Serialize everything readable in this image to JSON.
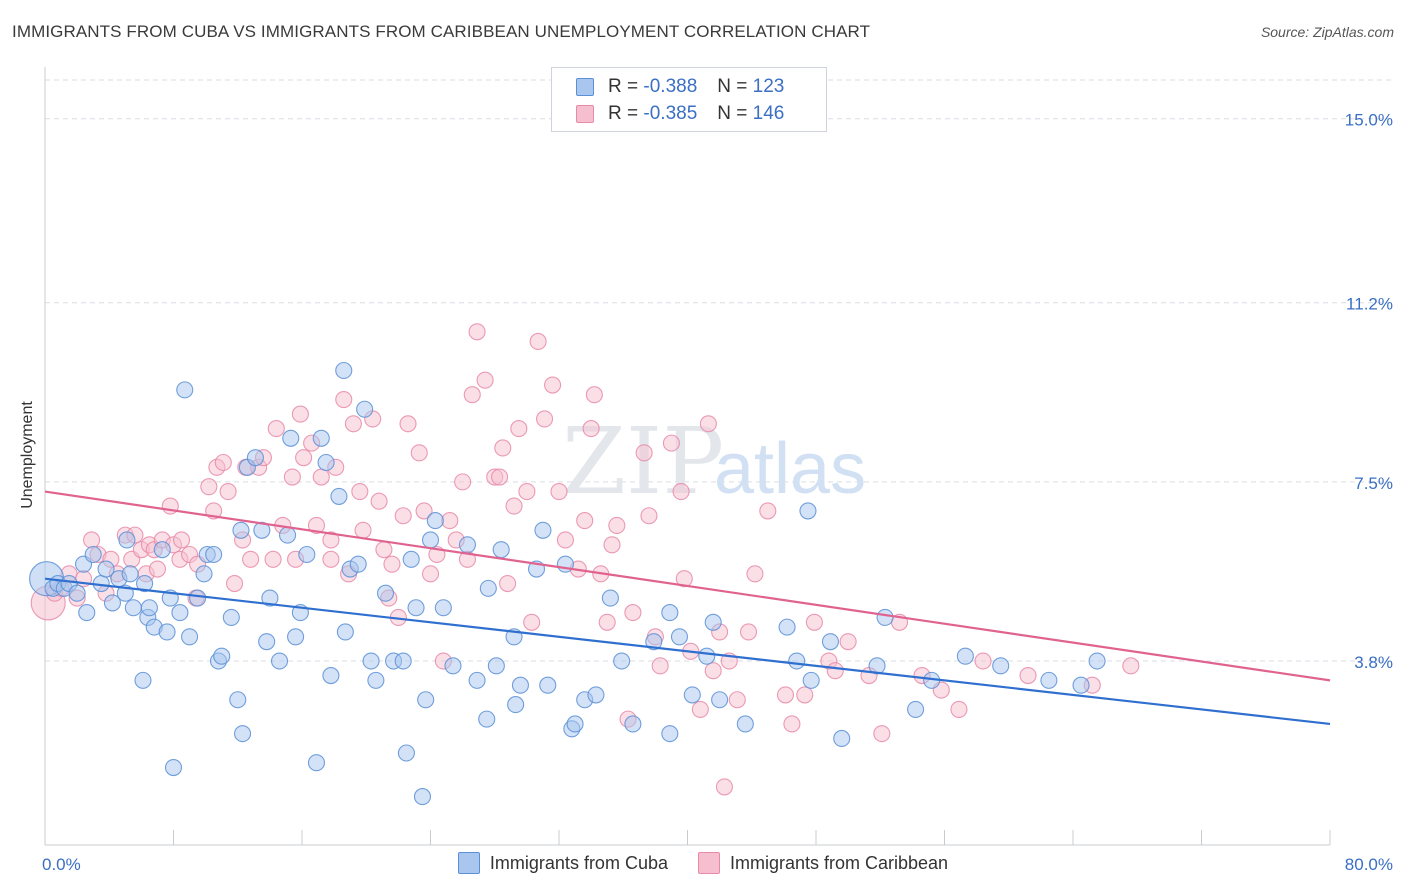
{
  "title": "IMMIGRANTS FROM CUBA VS IMMIGRANTS FROM CARIBBEAN UNEMPLOYMENT CORRELATION CHART",
  "source": "Source: ZipAtlas.com",
  "watermark": {
    "zip": "ZIP",
    "atlas": "atlas"
  },
  "legend": {
    "r_label": "R =",
    "n_label": "N =",
    "cuba": {
      "r": "-0.388",
      "n": "123"
    },
    "caribbean": {
      "r": "-0.385",
      "n": "146"
    }
  },
  "colors": {
    "cuba_fill": "#a8c6ee",
    "cuba_stroke": "#5b8fd6",
    "cuba_line": "#2f6fcf",
    "carib_fill": "#f6bfd0",
    "carib_stroke": "#e889a8",
    "carib_line": "#e0638f",
    "tick_text": "#3a6fc4",
    "grid": "#d9dde3"
  },
  "chart_data": {
    "type": "scatter",
    "title": "IMMIGRANTS FROM CUBA VS IMMIGRANTS FROM CARIBBEAN UNEMPLOYMENT CORRELATION CHART",
    "xlabel": "",
    "ylabel": "Unemployment",
    "xlim": [
      0,
      80
    ],
    "ylim": [
      0,
      15.8
    ],
    "x_tick_labels": [
      "0.0%",
      "80.0%"
    ],
    "y_ticks": [
      3.8,
      7.5,
      11.2,
      15.0
    ],
    "y_tick_labels": [
      "3.8%",
      "7.5%",
      "11.2%",
      "15.0%"
    ],
    "grid": true,
    "legend_position": "top-center",
    "series": [
      {
        "name": "Immigrants from Cuba",
        "trend": {
          "x": [
            0,
            80
          ],
          "y": [
            5.5,
            2.5
          ]
        },
        "points": [
          [
            0.1,
            5.5
          ],
          [
            0.5,
            5.3
          ],
          [
            0.8,
            5.4
          ],
          [
            1.2,
            5.3
          ],
          [
            1.5,
            5.4
          ],
          [
            2,
            5.2
          ],
          [
            2.4,
            5.8
          ],
          [
            2.6,
            4.8
          ],
          [
            3,
            6.0
          ],
          [
            3.5,
            5.4
          ],
          [
            3.8,
            5.7
          ],
          [
            4.2,
            5.0
          ],
          [
            4.6,
            5.5
          ],
          [
            5,
            5.2
          ],
          [
            5.1,
            6.3
          ],
          [
            5.3,
            5.6
          ],
          [
            5.5,
            4.9
          ],
          [
            6.1,
            3.4
          ],
          [
            6.2,
            5.4
          ],
          [
            6.4,
            4.7
          ],
          [
            6.5,
            4.9
          ],
          [
            6.8,
            4.5
          ],
          [
            7.3,
            6.1
          ],
          [
            7.6,
            4.4
          ],
          [
            7.8,
            5.1
          ],
          [
            8.0,
            1.6
          ],
          [
            8.4,
            4.8
          ],
          [
            8.7,
            9.4
          ],
          [
            9.0,
            4.3
          ],
          [
            9.5,
            5.1
          ],
          [
            9.9,
            5.6
          ],
          [
            10.1,
            6.0
          ],
          [
            10.5,
            6.0
          ],
          [
            10.8,
            3.8
          ],
          [
            11.0,
            3.9
          ],
          [
            11.6,
            4.7
          ],
          [
            12.0,
            3.0
          ],
          [
            12.2,
            6.5
          ],
          [
            12.3,
            2.3
          ],
          [
            12.6,
            7.8
          ],
          [
            13.1,
            8.0
          ],
          [
            13.5,
            6.5
          ],
          [
            13.8,
            4.2
          ],
          [
            14.0,
            5.1
          ],
          [
            14.6,
            3.8
          ],
          [
            15.1,
            6.4
          ],
          [
            15.3,
            8.4
          ],
          [
            15.6,
            4.3
          ],
          [
            15.9,
            4.8
          ],
          [
            16.3,
            6.0
          ],
          [
            16.9,
            1.7
          ],
          [
            17.2,
            8.4
          ],
          [
            17.5,
            7.9
          ],
          [
            17.8,
            3.5
          ],
          [
            18.3,
            7.2
          ],
          [
            18.6,
            9.8
          ],
          [
            18.7,
            4.4
          ],
          [
            19.0,
            5.7
          ],
          [
            19.5,
            5.8
          ],
          [
            19.9,
            9.0
          ],
          [
            20.3,
            3.8
          ],
          [
            20.6,
            3.4
          ],
          [
            21.2,
            5.2
          ],
          [
            21.7,
            3.8
          ],
          [
            22.3,
            3.8
          ],
          [
            22.5,
            1.9
          ],
          [
            22.8,
            5.9
          ],
          [
            23.1,
            4.9
          ],
          [
            23.5,
            1.0
          ],
          [
            23.7,
            3.0
          ],
          [
            24.0,
            6.3
          ],
          [
            24.3,
            6.7
          ],
          [
            24.8,
            4.9
          ],
          [
            25.4,
            3.7
          ],
          [
            26.3,
            6.2
          ],
          [
            26.9,
            3.4
          ],
          [
            27.5,
            2.6
          ],
          [
            27.6,
            5.3
          ],
          [
            28.1,
            3.7
          ],
          [
            28.4,
            6.1
          ],
          [
            29.2,
            4.3
          ],
          [
            29.3,
            2.9
          ],
          [
            29.6,
            3.3
          ],
          [
            30.6,
            5.7
          ],
          [
            31.0,
            6.5
          ],
          [
            31.3,
            3.3
          ],
          [
            32.4,
            5.8
          ],
          [
            32.8,
            2.4
          ],
          [
            33.0,
            2.5
          ],
          [
            33.6,
            3.0
          ],
          [
            34.3,
            3.1
          ],
          [
            35.2,
            5.1
          ],
          [
            35.9,
            3.8
          ],
          [
            36.6,
            2.5
          ],
          [
            37.9,
            4.2
          ],
          [
            38.9,
            2.3
          ],
          [
            38.9,
            4.8
          ],
          [
            39.5,
            4.3
          ],
          [
            40.3,
            3.1
          ],
          [
            41.2,
            3.9
          ],
          [
            41.6,
            4.6
          ],
          [
            42.0,
            3.0
          ],
          [
            43.6,
            2.5
          ],
          [
            46.2,
            4.5
          ],
          [
            46.8,
            3.8
          ],
          [
            47.5,
            6.9
          ],
          [
            47.7,
            3.4
          ],
          [
            48.9,
            4.2
          ],
          [
            49.6,
            2.2
          ],
          [
            51.8,
            3.7
          ],
          [
            52.3,
            4.7
          ],
          [
            54.2,
            2.8
          ],
          [
            55.2,
            3.4
          ],
          [
            57.3,
            3.9
          ],
          [
            59.5,
            3.7
          ],
          [
            62.5,
            3.4
          ],
          [
            64.5,
            3.3
          ],
          [
            65.5,
            3.8
          ]
        ]
      },
      {
        "name": "Immigrants from Caribbean",
        "trend": {
          "x": [
            0,
            80
          ],
          "y": [
            7.3,
            3.4
          ]
        },
        "points": [
          [
            0.2,
            5.0
          ],
          [
            0.6,
            5.2
          ],
          [
            1.0,
            5.3
          ],
          [
            1.5,
            5.6
          ],
          [
            2,
            5.1
          ],
          [
            2.4,
            5.5
          ],
          [
            2.9,
            6.3
          ],
          [
            3.3,
            6.0
          ],
          [
            3.8,
            5.2
          ],
          [
            4.1,
            5.9
          ],
          [
            4.5,
            5.6
          ],
          [
            5.0,
            6.4
          ],
          [
            5.4,
            5.9
          ],
          [
            5.6,
            6.4
          ],
          [
            6.0,
            6.1
          ],
          [
            6.3,
            5.6
          ],
          [
            6.5,
            6.2
          ],
          [
            6.8,
            6.1
          ],
          [
            7.0,
            5.7
          ],
          [
            7.3,
            6.3
          ],
          [
            7.8,
            7.0
          ],
          [
            8.0,
            6.2
          ],
          [
            8.4,
            5.9
          ],
          [
            8.5,
            6.3
          ],
          [
            9.0,
            6.0
          ],
          [
            9.4,
            5.1
          ],
          [
            9.5,
            5.8
          ],
          [
            10.2,
            7.4
          ],
          [
            10.5,
            6.9
          ],
          [
            10.7,
            7.8
          ],
          [
            11.1,
            7.9
          ],
          [
            11.4,
            7.3
          ],
          [
            11.8,
            5.4
          ],
          [
            12.3,
            6.3
          ],
          [
            12.5,
            7.8
          ],
          [
            12.8,
            5.9
          ],
          [
            13.3,
            7.8
          ],
          [
            13.6,
            8.0
          ],
          [
            14.2,
            5.9
          ],
          [
            14.4,
            8.6
          ],
          [
            14.8,
            6.6
          ],
          [
            15.4,
            7.6
          ],
          [
            15.6,
            5.9
          ],
          [
            15.9,
            8.9
          ],
          [
            16.1,
            8.0
          ],
          [
            16.6,
            8.3
          ],
          [
            16.9,
            6.6
          ],
          [
            17.2,
            7.6
          ],
          [
            17.8,
            5.9
          ],
          [
            17.8,
            6.3
          ],
          [
            18.1,
            7.8
          ],
          [
            18.6,
            9.2
          ],
          [
            18.9,
            5.6
          ],
          [
            19.2,
            8.7
          ],
          [
            19.6,
            7.3
          ],
          [
            19.8,
            6.5
          ],
          [
            20.4,
            8.8
          ],
          [
            20.8,
            7.1
          ],
          [
            21.1,
            6.1
          ],
          [
            21.4,
            5.1
          ],
          [
            21.6,
            5.8
          ],
          [
            22.0,
            4.7
          ],
          [
            22.3,
            6.8
          ],
          [
            22.6,
            8.7
          ],
          [
            23.3,
            8.1
          ],
          [
            23.6,
            6.9
          ],
          [
            24.0,
            5.6
          ],
          [
            24.4,
            6.0
          ],
          [
            24.8,
            3.8
          ],
          [
            25.2,
            6.7
          ],
          [
            25.6,
            6.3
          ],
          [
            26.0,
            7.5
          ],
          [
            26.3,
            5.9
          ],
          [
            26.6,
            9.3
          ],
          [
            26.9,
            10.6
          ],
          [
            27.4,
            9.6
          ],
          [
            28.0,
            7.6
          ],
          [
            28.3,
            7.6
          ],
          [
            28.5,
            8.2
          ],
          [
            28.8,
            5.4
          ],
          [
            29.2,
            7.0
          ],
          [
            29.5,
            8.6
          ],
          [
            30.0,
            7.3
          ],
          [
            30.3,
            4.6
          ],
          [
            30.7,
            10.4
          ],
          [
            31.1,
            8.8
          ],
          [
            31.6,
            9.5
          ],
          [
            32.0,
            7.3
          ],
          [
            32.4,
            6.3
          ],
          [
            33.2,
            5.7
          ],
          [
            33.6,
            6.7
          ],
          [
            34.0,
            8.6
          ],
          [
            34.2,
            9.3
          ],
          [
            34.6,
            5.6
          ],
          [
            35.0,
            4.6
          ],
          [
            35.3,
            6.2
          ],
          [
            35.6,
            6.6
          ],
          [
            36.3,
            2.6
          ],
          [
            36.6,
            4.8
          ],
          [
            37.3,
            8.1
          ],
          [
            37.6,
            6.8
          ],
          [
            38.0,
            4.3
          ],
          [
            38.3,
            3.7
          ],
          [
            39.0,
            8.3
          ],
          [
            39.6,
            7.3
          ],
          [
            39.8,
            5.5
          ],
          [
            40.2,
            4.0
          ],
          [
            40.8,
            2.8
          ],
          [
            41.3,
            8.7
          ],
          [
            41.6,
            3.6
          ],
          [
            42.0,
            4.4
          ],
          [
            42.3,
            1.2
          ],
          [
            42.6,
            3.8
          ],
          [
            43.1,
            3.0
          ],
          [
            43.8,
            4.4
          ],
          [
            44.2,
            5.6
          ],
          [
            45.0,
            6.9
          ],
          [
            46.1,
            3.1
          ],
          [
            46.5,
            2.5
          ],
          [
            47.3,
            3.1
          ],
          [
            47.9,
            4.6
          ],
          [
            48.8,
            3.8
          ],
          [
            49.2,
            3.6
          ],
          [
            50.0,
            4.2
          ],
          [
            51.3,
            3.5
          ],
          [
            52.1,
            2.3
          ],
          [
            53.2,
            4.6
          ],
          [
            54.6,
            3.5
          ],
          [
            55.8,
            3.2
          ],
          [
            56.9,
            2.8
          ],
          [
            58.4,
            3.8
          ],
          [
            61.2,
            3.5
          ],
          [
            65.2,
            3.3
          ],
          [
            67.6,
            3.7
          ]
        ]
      }
    ]
  }
}
